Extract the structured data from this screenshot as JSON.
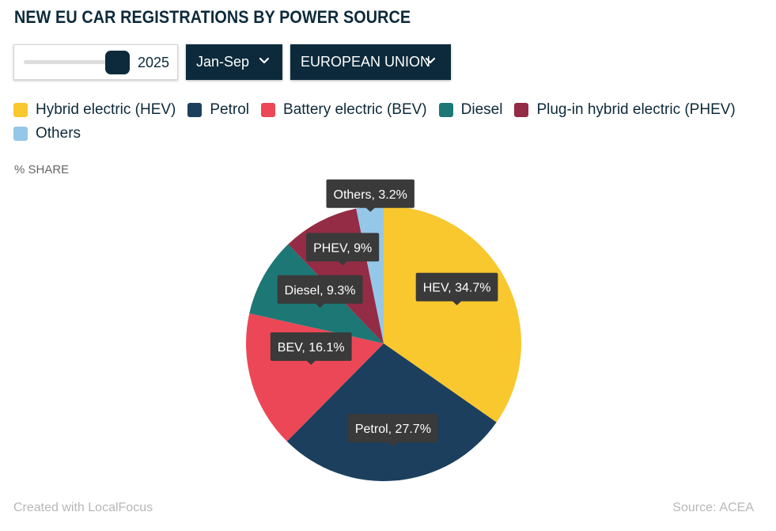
{
  "title": "NEW EU CAR REGISTRATIONS BY POWER SOURCE",
  "controls": {
    "year_value": "2025",
    "period_label": "Jan-Sep",
    "region_label": "EUROPEAN UNION"
  },
  "legend": [
    {
      "label": "Hybrid electric (HEV)",
      "color": "#f9c72e"
    },
    {
      "label": "Petrol",
      "color": "#1c3f5e"
    },
    {
      "label": "Battery electric (BEV)",
      "color": "#ec4756"
    },
    {
      "label": "Diesel",
      "color": "#1d7775"
    },
    {
      "label": "Plug-in hybrid electric (PHEV)",
      "color": "#932c44"
    },
    {
      "label": "Others",
      "color": "#95c7e9"
    }
  ],
  "unit_label": "% SHARE",
  "chart_data": {
    "type": "pie",
    "slices": [
      {
        "name": "HEV",
        "value": 34.7,
        "label": "HEV, 34.7%",
        "color": "#f9c72e"
      },
      {
        "name": "Petrol",
        "value": 27.7,
        "label": "Petrol, 27.7%",
        "color": "#1c3f5e"
      },
      {
        "name": "BEV",
        "value": 16.1,
        "label": "BEV, 16.1%",
        "color": "#ec4756"
      },
      {
        "name": "Diesel",
        "value": 9.3,
        "label": "Diesel, 9.3%",
        "color": "#1d7775"
      },
      {
        "name": "PHEV",
        "value": 9,
        "label": "PHEV, 9%",
        "color": "#932c44"
      },
      {
        "name": "Others",
        "value": 3.2,
        "label": "Others, 3.2%",
        "color": "#95c7e9"
      }
    ]
  },
  "footer": {
    "credit": "Created with LocalFocus",
    "source_label": "Source:",
    "source_name": "ACEA"
  }
}
